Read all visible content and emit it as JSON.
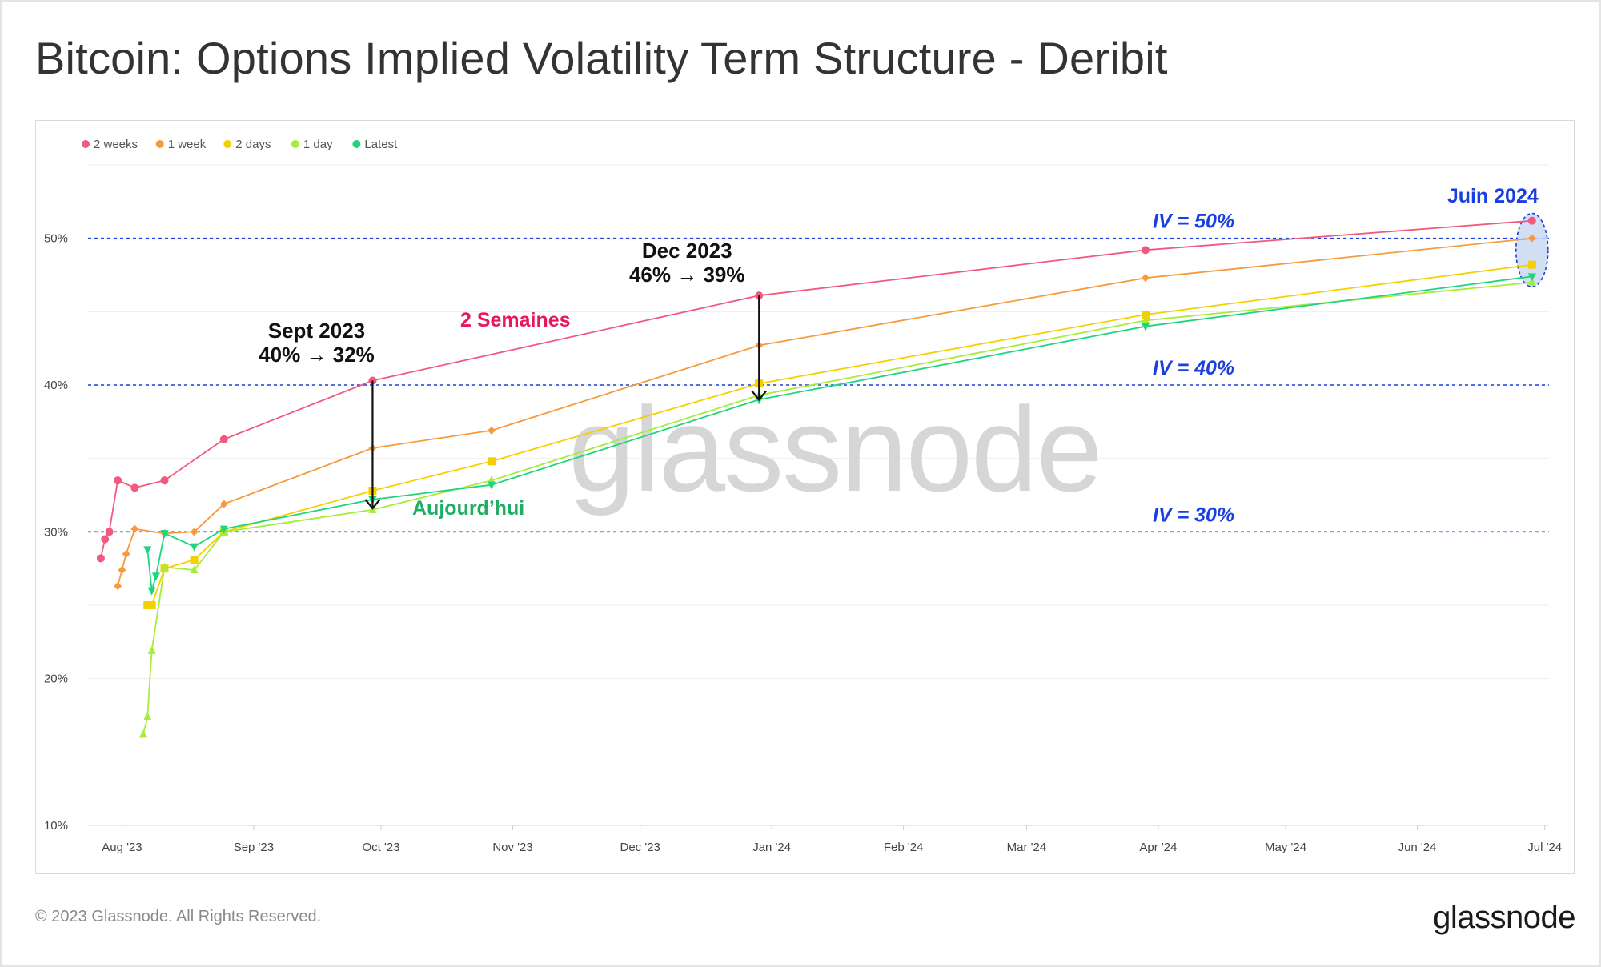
{
  "title": "Bitcoin: Options Implied Volatility Term Structure - Deribit",
  "footer": {
    "copyright": "© 2023 Glassnode. All Rights Reserved.",
    "logo": "glassnode"
  },
  "watermark": "glassnode",
  "chart_data": {
    "type": "line",
    "title": "Bitcoin: Options Implied Volatility Term Structure - Deribit",
    "xlabel": "",
    "ylabel": "",
    "ylim": [
      10,
      55
    ],
    "xlim": [
      "2023-07-24",
      "2024-07-02"
    ],
    "x_ticks": [
      {
        "date": "2023-08-01",
        "label": "Aug '23"
      },
      {
        "date": "2023-09-01",
        "label": "Sep '23"
      },
      {
        "date": "2023-10-01",
        "label": "Oct '23"
      },
      {
        "date": "2023-11-01",
        "label": "Nov '23"
      },
      {
        "date": "2023-12-01",
        "label": "Dec '23"
      },
      {
        "date": "2024-01-01",
        "label": "Jan '24"
      },
      {
        "date": "2024-02-01",
        "label": "Feb '24"
      },
      {
        "date": "2024-03-01",
        "label": "Mar '24"
      },
      {
        "date": "2024-04-01",
        "label": "Apr '24"
      },
      {
        "date": "2024-05-01",
        "label": "May '24"
      },
      {
        "date": "2024-06-01",
        "label": "Jun '24"
      },
      {
        "date": "2024-07-01",
        "label": "Jul '24"
      }
    ],
    "y_ticks": [
      {
        "value": 10,
        "label": "10%"
      },
      {
        "value": 20,
        "label": "20%"
      },
      {
        "value": 30,
        "label": "30%"
      },
      {
        "value": 40,
        "label": "40%"
      },
      {
        "value": 50,
        "label": "50%"
      }
    ],
    "legend": {
      "placement": "top-left"
    },
    "series": [
      {
        "name": "2 weeks",
        "color": "#f05a7e",
        "marker": "circle",
        "points": [
          [
            "2023-07-27",
            28.2
          ],
          [
            "2023-07-28",
            29.5
          ],
          [
            "2023-07-29",
            30.0
          ],
          [
            "2023-07-31",
            33.5
          ],
          [
            "2023-08-04",
            33.0
          ],
          [
            "2023-08-11",
            33.5
          ],
          [
            "2023-08-25",
            36.3
          ],
          [
            "2023-09-29",
            40.3
          ],
          [
            "2023-12-29",
            46.1
          ],
          [
            "2024-03-29",
            49.2
          ],
          [
            "2024-06-28",
            51.2
          ]
        ]
      },
      {
        "name": "1 week",
        "color": "#f79a3e",
        "marker": "diamond",
        "points": [
          [
            "2023-07-31",
            26.3
          ],
          [
            "2023-08-01",
            27.4
          ],
          [
            "2023-08-02",
            28.5
          ],
          [
            "2023-08-04",
            30.2
          ],
          [
            "2023-08-11",
            29.9
          ],
          [
            "2023-08-18",
            30.0
          ],
          [
            "2023-08-25",
            31.9
          ],
          [
            "2023-09-29",
            35.7
          ],
          [
            "2023-10-27",
            36.9
          ],
          [
            "2023-12-29",
            42.7
          ],
          [
            "2024-03-29",
            47.3
          ],
          [
            "2024-06-28",
            50.0
          ]
        ]
      },
      {
        "name": "2 days",
        "color": "#f5d000",
        "marker": "square",
        "points": [
          [
            "2023-08-07",
            25.0
          ],
          [
            "2023-08-08",
            25.0
          ],
          [
            "2023-08-11",
            27.5
          ],
          [
            "2023-08-18",
            28.1
          ],
          [
            "2023-08-25",
            30.0
          ],
          [
            "2023-09-29",
            32.8
          ],
          [
            "2023-10-27",
            34.8
          ],
          [
            "2023-12-29",
            40.1
          ],
          [
            "2024-03-29",
            44.8
          ],
          [
            "2024-06-28",
            48.2
          ]
        ]
      },
      {
        "name": "1 day",
        "color": "#a6ec3a",
        "marker": "triangle-up",
        "points": [
          [
            "2023-08-06",
            16.2
          ],
          [
            "2023-08-07",
            17.4
          ],
          [
            "2023-08-08",
            21.9
          ],
          [
            "2023-08-11",
            27.6
          ],
          [
            "2023-08-18",
            27.4
          ],
          [
            "2023-08-25",
            30.0
          ],
          [
            "2023-09-29",
            31.5
          ],
          [
            "2023-10-27",
            33.5
          ],
          [
            "2023-12-29",
            39.3
          ],
          [
            "2024-03-29",
            44.4
          ],
          [
            "2024-06-28",
            47.0
          ]
        ]
      },
      {
        "name": "Latest",
        "color": "#20d47e",
        "marker": "triangle-down",
        "points": [
          [
            "2023-08-07",
            28.8
          ],
          [
            "2023-08-08",
            26.0
          ],
          [
            "2023-08-09",
            27.0
          ],
          [
            "2023-08-11",
            29.9
          ],
          [
            "2023-08-18",
            29.0
          ],
          [
            "2023-08-25",
            30.2
          ],
          [
            "2023-09-29",
            32.2
          ],
          [
            "2023-10-27",
            33.2
          ],
          [
            "2023-12-29",
            39.0
          ],
          [
            "2024-03-29",
            44.0
          ],
          [
            "2024-06-28",
            47.4
          ]
        ]
      }
    ],
    "reference_lines": [
      {
        "value": 50,
        "label": "IV = 50%"
      },
      {
        "value": 40,
        "label": "IV = 40%"
      },
      {
        "value": 30,
        "label": "IV = 30%"
      }
    ],
    "annotations": {
      "sept": {
        "line1": "Sept 2023",
        "line2": "40% → 32%",
        "date": "2023-09-29",
        "from": 40.3,
        "to": 31.6
      },
      "dec": {
        "line1": "Dec 2023",
        "line2": "46% → 39%",
        "date": "2023-12-29",
        "from": 46.1,
        "to": 39.0
      },
      "two_weeks": "2 Semaines",
      "today": "Aujourd’hui",
      "june": {
        "label": "Juin 2024",
        "date": "2024-06-28",
        "top": 51.7,
        "bottom": 46.7
      }
    }
  }
}
